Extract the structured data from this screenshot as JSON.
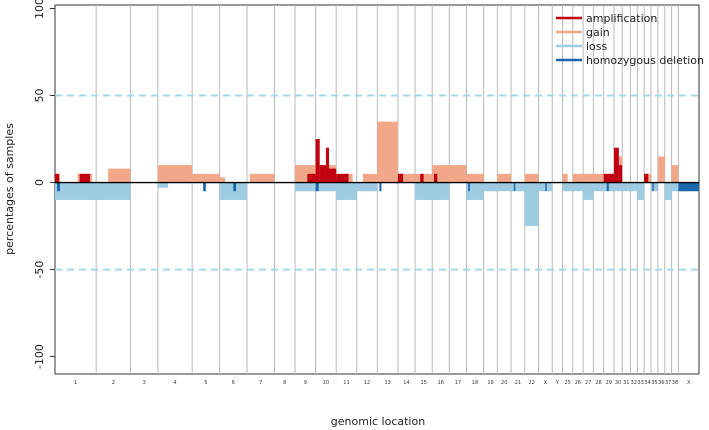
{
  "chart_data": {
    "type": "bar",
    "title": "",
    "xlabel": "genomic location",
    "ylabel": "percentages of samples",
    "ylim": [
      -110,
      102
    ],
    "yticks": [
      100,
      50,
      0,
      -50,
      -100
    ],
    "reference_lines": [
      50,
      -50
    ],
    "colors": {
      "amplification": "#c00010",
      "gain": "#f2a888",
      "loss": "#9ccbe2",
      "homozygous_deletion": "#1b67ac",
      "reference_line": "#a8d8e8",
      "separator": "#b8b8b8"
    },
    "legend": [
      {
        "key": "amplification",
        "label": "amplification"
      },
      {
        "key": "gain",
        "label": "gain"
      },
      {
        "key": "loss",
        "label": "loss"
      },
      {
        "key": "homozygous_deletion",
        "label": "homozygous deletion"
      }
    ],
    "chromosomes": [
      {
        "label": "1",
        "width": 6
      },
      {
        "label": "2",
        "width": 5
      },
      {
        "label": "3",
        "width": 4
      },
      {
        "label": "4",
        "width": 5
      },
      {
        "label": "5",
        "width": 4
      },
      {
        "label": "6",
        "width": 4
      },
      {
        "label": "7",
        "width": 4
      },
      {
        "label": "8",
        "width": 3
      },
      {
        "label": "9",
        "width": 3
      },
      {
        "label": "10",
        "width": 3
      },
      {
        "label": "11",
        "width": 3
      },
      {
        "label": "12",
        "width": 3
      },
      {
        "label": "13",
        "width": 3
      },
      {
        "label": "14",
        "width": 2.5
      },
      {
        "label": "15",
        "width": 2.5
      },
      {
        "label": "16",
        "width": 2.5
      },
      {
        "label": "17",
        "width": 2.5
      },
      {
        "label": "18",
        "width": 2.5
      },
      {
        "label": "19",
        "width": 2
      },
      {
        "label": "20",
        "width": 2
      },
      {
        "label": "21",
        "width": 2
      },
      {
        "label": "22",
        "width": 2
      },
      {
        "label": "X",
        "width": 2
      },
      {
        "label": "Y",
        "width": 1.5
      },
      {
        "label": "25",
        "width": 1.5
      },
      {
        "label": "26",
        "width": 1.5
      },
      {
        "label": "27",
        "width": 1.5
      },
      {
        "label": "28",
        "width": 1.5
      },
      {
        "label": "29",
        "width": 1.5
      },
      {
        "label": "30",
        "width": 1.2
      },
      {
        "label": "31",
        "width": 1.2
      },
      {
        "label": "32",
        "width": 1
      },
      {
        "label": "33",
        "width": 1
      },
      {
        "label": "34",
        "width": 1
      },
      {
        "label": "35",
        "width": 1
      },
      {
        "label": "36",
        "width": 1
      },
      {
        "label": "37",
        "width": 1
      },
      {
        "label": "38",
        "width": 1
      },
      {
        "label": "X",
        "width": 3
      }
    ],
    "series": [
      {
        "name": "gain",
        "segments": [
          {
            "chrom": 1,
            "start": 0,
            "end": 0.12,
            "value": 5
          },
          {
            "chrom": 1,
            "start": 0.55,
            "end": 0.9,
            "value": 5
          },
          {
            "chrom": 2,
            "start": 0.35,
            "end": 1.0,
            "value": 8
          },
          {
            "chrom": 4,
            "start": 0.0,
            "end": 1.0,
            "value": 10
          },
          {
            "chrom": 5,
            "start": 0.0,
            "end": 1.0,
            "value": 5
          },
          {
            "chrom": 6,
            "start": 0.0,
            "end": 0.2,
            "value": 3
          },
          {
            "chrom": 7,
            "start": 0.1,
            "end": 1.0,
            "value": 5
          },
          {
            "chrom": 9,
            "start": 0.0,
            "end": 1.0,
            "value": 10
          },
          {
            "chrom": 10,
            "start": 0.0,
            "end": 1.0,
            "value": 10
          },
          {
            "chrom": 11,
            "start": 0.0,
            "end": 0.8,
            "value": 5
          },
          {
            "chrom": 12,
            "start": 0.3,
            "end": 1.0,
            "value": 5
          },
          {
            "chrom": 13,
            "start": 0.0,
            "end": 1.0,
            "value": 35
          },
          {
            "chrom": 14,
            "start": 0.0,
            "end": 1.0,
            "value": 5
          },
          {
            "chrom": 15,
            "start": 0.0,
            "end": 1.0,
            "value": 5
          },
          {
            "chrom": 16,
            "start": 0.0,
            "end": 1.0,
            "value": 10
          },
          {
            "chrom": 17,
            "start": 0.0,
            "end": 1.0,
            "value": 10
          },
          {
            "chrom": 18,
            "start": 0.0,
            "end": 1.0,
            "value": 5
          },
          {
            "chrom": 20,
            "start": 0.0,
            "end": 1.0,
            "value": 5
          },
          {
            "chrom": 22,
            "start": 0.0,
            "end": 1.0,
            "value": 5
          },
          {
            "chrom": 25,
            "start": 0.0,
            "end": 0.5,
            "value": 5
          },
          {
            "chrom": 26,
            "start": 0.0,
            "end": 1.0,
            "value": 5
          },
          {
            "chrom": 27,
            "start": 0.0,
            "end": 1.0,
            "value": 5
          },
          {
            "chrom": 28,
            "start": 0.0,
            "end": 1.0,
            "value": 5
          },
          {
            "chrom": 29,
            "start": 0.0,
            "end": 1.0,
            "value": 5
          },
          {
            "chrom": 30,
            "start": 0.0,
            "end": 1.0,
            "value": 15
          },
          {
            "chrom": 34,
            "start": 0.0,
            "end": 1.0,
            "value": 5
          },
          {
            "chrom": 36,
            "start": 0.0,
            "end": 1.0,
            "value": 15
          },
          {
            "chrom": 38,
            "start": 0.0,
            "end": 1.0,
            "value": 10
          }
        ]
      },
      {
        "name": "amplification",
        "segments": [
          {
            "chrom": 1,
            "start": 0.0,
            "end": 0.1,
            "value": 5
          },
          {
            "chrom": 1,
            "start": 0.6,
            "end": 0.85,
            "value": 5
          },
          {
            "chrom": 9,
            "start": 0.6,
            "end": 1.0,
            "value": 5
          },
          {
            "chrom": 10,
            "start": 0.0,
            "end": 0.2,
            "value": 25
          },
          {
            "chrom": 10,
            "start": 0.2,
            "end": 0.5,
            "value": 10
          },
          {
            "chrom": 10,
            "start": 0.5,
            "end": 0.65,
            "value": 20
          },
          {
            "chrom": 10,
            "start": 0.65,
            "end": 1.0,
            "value": 8
          },
          {
            "chrom": 11,
            "start": 0.0,
            "end": 0.6,
            "value": 5
          },
          {
            "chrom": 14,
            "start": 0.0,
            "end": 0.3,
            "value": 5
          },
          {
            "chrom": 15,
            "start": 0.3,
            "end": 0.5,
            "value": 5
          },
          {
            "chrom": 16,
            "start": 0.1,
            "end": 0.3,
            "value": 5
          },
          {
            "chrom": 29,
            "start": 0.0,
            "end": 1.0,
            "value": 5
          },
          {
            "chrom": 30,
            "start": 0.0,
            "end": 0.6,
            "value": 20
          },
          {
            "chrom": 30,
            "start": 0.6,
            "end": 1.0,
            "value": 10
          },
          {
            "chrom": 34,
            "start": 0.0,
            "end": 0.6,
            "value": 5
          }
        ]
      },
      {
        "name": "loss",
        "segments": [
          {
            "chrom": 1,
            "start": 0.0,
            "end": 1.0,
            "value": -10
          },
          {
            "chrom": 2,
            "start": 0.0,
            "end": 1.0,
            "value": -10
          },
          {
            "chrom": 4,
            "start": 0.0,
            "end": 0.3,
            "value": -3
          },
          {
            "chrom": 6,
            "start": 0.0,
            "end": 1.0,
            "value": -10
          },
          {
            "chrom": 9,
            "start": 0.0,
            "end": 1.0,
            "value": -5
          },
          {
            "chrom": 10,
            "start": 0.0,
            "end": 1.0,
            "value": -5
          },
          {
            "chrom": 11,
            "start": 0.0,
            "end": 1.0,
            "value": -10
          },
          {
            "chrom": 12,
            "start": 0.0,
            "end": 1.0,
            "value": -5
          },
          {
            "chrom": 15,
            "start": 0.0,
            "end": 1.0,
            "value": -10
          },
          {
            "chrom": 16,
            "start": 0.0,
            "end": 1.0,
            "value": -10
          },
          {
            "chrom": 18,
            "start": 0.0,
            "end": 1.0,
            "value": -10
          },
          {
            "chrom": 19,
            "start": 0.0,
            "end": 1.0,
            "value": -5
          },
          {
            "chrom": 20,
            "start": 0.0,
            "end": 1.0,
            "value": -5
          },
          {
            "chrom": 21,
            "start": 0.0,
            "end": 1.0,
            "value": -5
          },
          {
            "chrom": 22,
            "start": 0.0,
            "end": 1.0,
            "value": -25
          },
          {
            "chrom": 23,
            "start": 0.0,
            "end": 1.0,
            "value": -5
          },
          {
            "chrom": 25,
            "start": 0.0,
            "end": 1.0,
            "value": -5
          },
          {
            "chrom": 26,
            "start": 0.0,
            "end": 1.0,
            "value": -5
          },
          {
            "chrom": 27,
            "start": 0.0,
            "end": 1.0,
            "value": -10
          },
          {
            "chrom": 28,
            "start": 0.0,
            "end": 1.0,
            "value": -5
          },
          {
            "chrom": 29,
            "start": 0.0,
            "end": 1.0,
            "value": -5
          },
          {
            "chrom": 30,
            "start": 0.0,
            "end": 1.0,
            "value": -5
          },
          {
            "chrom": 31,
            "start": 0.0,
            "end": 1.0,
            "value": -5
          },
          {
            "chrom": 32,
            "start": 0.0,
            "end": 1.0,
            "value": -5
          },
          {
            "chrom": 33,
            "start": 0.0,
            "end": 1.0,
            "value": -10
          },
          {
            "chrom": 35,
            "start": 0.0,
            "end": 1.0,
            "value": -5
          },
          {
            "chrom": 37,
            "start": 0.0,
            "end": 1.0,
            "value": -10
          },
          {
            "chrom": 38,
            "start": 0.0,
            "end": 1.0,
            "value": -5
          },
          {
            "chrom": 39,
            "start": 0.0,
            "end": 0.5,
            "value": -5
          }
        ]
      },
      {
        "name": "homozygous_deletion",
        "segments": [
          {
            "chrom": 1,
            "start": 0.05,
            "end": 0.12,
            "value": -5
          },
          {
            "chrom": 5,
            "start": 0.4,
            "end": 0.5,
            "value": -5
          },
          {
            "chrom": 6,
            "start": 0.5,
            "end": 0.6,
            "value": -5
          },
          {
            "chrom": 10,
            "start": 0.0,
            "end": 0.15,
            "value": -5
          },
          {
            "chrom": 13,
            "start": 0.1,
            "end": 0.2,
            "value": -5
          },
          {
            "chrom": 18,
            "start": 0.1,
            "end": 0.2,
            "value": -5
          },
          {
            "chrom": 21,
            "start": 0.2,
            "end": 0.3,
            "value": -5
          },
          {
            "chrom": 23,
            "start": 0.5,
            "end": 0.6,
            "value": -5
          },
          {
            "chrom": 29,
            "start": 0.3,
            "end": 0.5,
            "value": -5
          },
          {
            "chrom": 35,
            "start": 0.2,
            "end": 0.4,
            "value": -5
          },
          {
            "chrom": 39,
            "start": 0.0,
            "end": 1.0,
            "value": -5
          }
        ]
      }
    ]
  }
}
